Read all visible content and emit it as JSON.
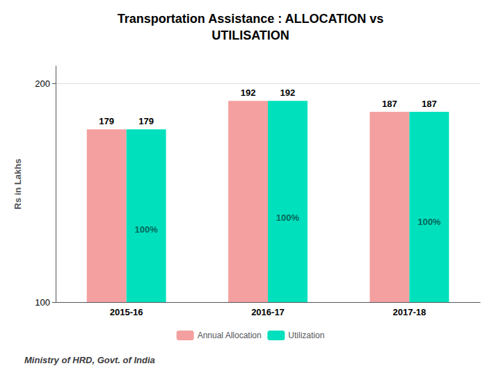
{
  "chart_data": {
    "type": "bar",
    "title": "Transportation Assistance : ALLOCATION vs\nUTILISATION",
    "ylabel": "Rs in Lakhs",
    "footer": "Ministry of HRD, Govt. of India",
    "categories": [
      "2015-16",
      "2016-17",
      "2017-18"
    ],
    "series": [
      {
        "name": "Annual Allocation",
        "color": "#F4A0A0",
        "values": [
          179,
          192,
          187
        ]
      },
      {
        "name": "Utilization",
        "color": "#00E0BC",
        "values": [
          179,
          192,
          187
        ],
        "annotations": [
          "100%",
          "100%",
          "100%"
        ]
      }
    ],
    "ylim": [
      100,
      208
    ],
    "yticks": [
      100,
      200
    ],
    "grid": true,
    "legend": "bottom",
    "data_labels": true
  }
}
